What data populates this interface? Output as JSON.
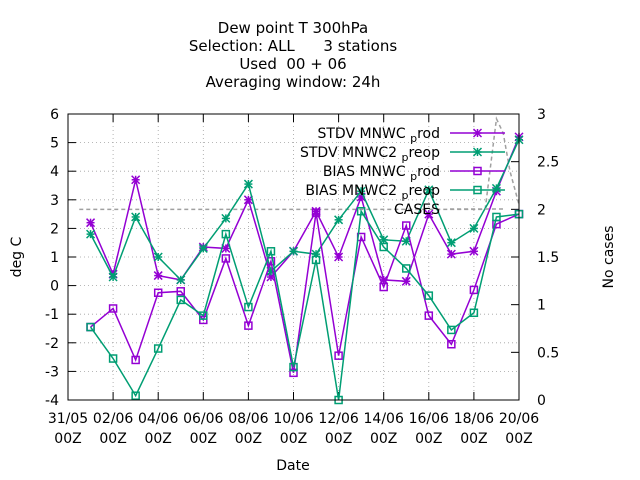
{
  "chart_data": {
    "type": "line",
    "title_lines": [
      "Dew point T 300hPa",
      "Selection: ALL      3 stations",
      "Used  00 + 06",
      "Averaging window: 24h"
    ],
    "xlabel": "Date",
    "ylabel": "deg C",
    "y2label": "No cases",
    "ylim": [
      -4,
      6
    ],
    "y2lim": [
      0,
      3
    ],
    "yticks": [
      "-4",
      "-3",
      "-2",
      "-1",
      "0",
      "1",
      "2",
      "3",
      "4",
      "5",
      "6"
    ],
    "y2ticks": [
      "0",
      "0.5",
      "1",
      "1.5",
      "2",
      "2.5",
      "3"
    ],
    "xticks": [
      {
        "top": "31/05",
        "bottom": "00Z"
      },
      {
        "top": "02/06",
        "bottom": "00Z"
      },
      {
        "top": "04/06",
        "bottom": "00Z"
      },
      {
        "top": "06/06",
        "bottom": "00Z"
      },
      {
        "top": "08/06",
        "bottom": "00Z"
      },
      {
        "top": "10/06",
        "bottom": "00Z"
      },
      {
        "top": "12/06",
        "bottom": "00Z"
      },
      {
        "top": "14/06",
        "bottom": "00Z"
      },
      {
        "top": "16/06",
        "bottom": "00Z"
      },
      {
        "top": "18/06",
        "bottom": "00Z"
      },
      {
        "top": "20/06",
        "bottom": "00Z"
      }
    ],
    "xlim_days": [
      0,
      20
    ],
    "legend_position": "top-right",
    "series": [
      {
        "name": "STDV MNWC_prod",
        "label_main": "STDV MNWC",
        "label_sub": "p",
        "label_rest": "rod",
        "color": "#9400d3",
        "marker": "star",
        "x": [
          1,
          2,
          3,
          4,
          5,
          6,
          7,
          8,
          9,
          10,
          11,
          12,
          13,
          14,
          15,
          16,
          17,
          18,
          19,
          20
        ],
        "values": [
          2.2,
          0.4,
          3.7,
          0.35,
          0.2,
          1.35,
          1.3,
          3.0,
          0.3,
          1.2,
          2.6,
          1.0,
          3.1,
          0.2,
          0.15,
          2.5,
          1.1,
          1.2,
          3.3,
          5.2
        ]
      },
      {
        "name": "STDV MNWC2_preop",
        "label_main": "STDV MNWC2",
        "label_sub": "p",
        "label_rest": "reop",
        "color": "#009e73",
        "marker": "star",
        "x": [
          1,
          2,
          3,
          4,
          5,
          6,
          7,
          8,
          9,
          10,
          11,
          12,
          13,
          14,
          15,
          16,
          17,
          18,
          19,
          20
        ],
        "values": [
          1.8,
          0.3,
          2.4,
          1.0,
          0.2,
          1.3,
          2.35,
          3.55,
          0.5,
          1.2,
          1.1,
          2.3,
          3.3,
          1.6,
          1.55,
          3.35,
          1.5,
          2.0,
          3.4,
          5.1
        ]
      },
      {
        "name": "BIAS MNWC_prod",
        "label_main": "BIAS MNWC",
        "label_sub": "p",
        "label_rest": "rod",
        "color": "#9400d3",
        "marker": "square",
        "x": [
          1,
          2,
          3,
          4,
          5,
          6,
          7,
          8,
          9,
          10,
          11,
          12,
          13,
          14,
          15,
          16,
          17,
          18,
          19,
          20
        ],
        "values": [
          -1.45,
          -0.8,
          -2.6,
          -0.25,
          -0.2,
          -1.2,
          0.95,
          -1.4,
          0.85,
          -3.05,
          2.55,
          -2.45,
          1.7,
          -0.05,
          2.1,
          -1.05,
          -2.05,
          -0.15,
          2.15,
          2.5
        ]
      },
      {
        "name": "BIAS MNWC2_preop",
        "label_main": "BIAS MNWC2",
        "label_sub": "p",
        "label_rest": "reop",
        "color": "#009e73",
        "marker": "square",
        "x": [
          1,
          2,
          3,
          4,
          5,
          6,
          7,
          8,
          9,
          10,
          11,
          12,
          13,
          14,
          15,
          16,
          17,
          18,
          19,
          20
        ],
        "values": [
          -1.45,
          -2.55,
          -3.85,
          -2.2,
          -0.5,
          -1.05,
          1.8,
          -0.75,
          1.2,
          -2.85,
          0.9,
          -4.0,
          2.6,
          1.35,
          0.6,
          -0.35,
          -1.55,
          -0.95,
          2.4,
          2.5
        ]
      }
    ],
    "cases": {
      "name": "CASES",
      "color": "#a0a0a0",
      "x": [
        0.5,
        1,
        2,
        3,
        4,
        5,
        6,
        7,
        8,
        9,
        10,
        11,
        12,
        13,
        14,
        15,
        16,
        17,
        18,
        18.5,
        19,
        19.3,
        19.6,
        20
      ],
      "values": [
        2,
        2,
        2,
        2,
        2,
        2,
        2,
        2,
        2,
        2,
        2,
        2,
        2,
        2,
        2,
        2,
        2,
        2,
        2,
        2,
        2.95,
        2.8,
        2.4,
        2.05
      ]
    }
  }
}
